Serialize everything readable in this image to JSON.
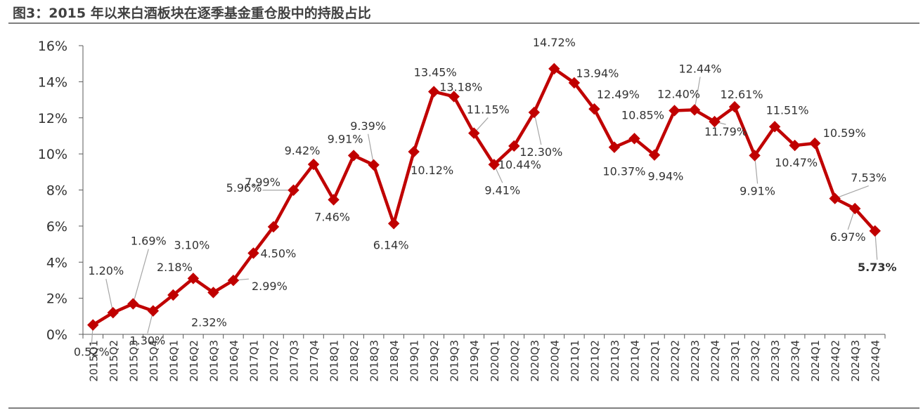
{
  "title": "图3：2015 年以来白酒板块在逐季基金重仓股中的持股占比",
  "chart_data": {
    "type": "line",
    "title": "图3：2015 年以来白酒板块在逐季基金重仓股中的持股占比",
    "xlabel": "",
    "ylabel": "",
    "ylim": [
      0,
      16
    ],
    "yticks": [
      "0%",
      "2%",
      "4%",
      "6%",
      "8%",
      "10%",
      "12%",
      "14%",
      "16%"
    ],
    "grid": false,
    "legend": "none",
    "line_color": "#c00000",
    "categories": [
      "2015Q1",
      "2015Q2",
      "2015Q3",
      "2015Q4",
      "2016Q1",
      "2016Q2",
      "2016Q3",
      "2016Q4",
      "2017Q1",
      "2017Q2",
      "2017Q3",
      "2017Q4",
      "2018Q1",
      "2018Q2",
      "2018Q3",
      "2018Q4",
      "2019Q1",
      "2019Q2",
      "2019Q3",
      "2019Q4",
      "2020Q1",
      "2020Q2",
      "2020Q3",
      "2020Q4",
      "2021Q1",
      "2021Q2",
      "2021Q3",
      "2021Q4",
      "2022Q1",
      "2022Q2",
      "2022Q3",
      "2022Q4",
      "2023Q1",
      "2023Q2",
      "2023Q3",
      "2023Q4",
      "2024Q1",
      "2024Q2",
      "2024Q3",
      "2024Q4"
    ],
    "values": [
      0.52,
      1.2,
      1.69,
      1.3,
      2.18,
      3.1,
      2.32,
      2.99,
      4.5,
      5.96,
      7.99,
      9.42,
      7.46,
      9.91,
      9.39,
      6.14,
      10.12,
      13.45,
      13.18,
      11.15,
      9.41,
      10.44,
      12.3,
      14.72,
      13.94,
      12.49,
      10.37,
      10.85,
      9.94,
      12.4,
      12.44,
      11.79,
      12.61,
      9.91,
      11.51,
      10.47,
      10.59,
      7.53,
      6.97,
      5.73
    ],
    "labels": [
      "0.52%",
      "1.20%",
      "1.69%",
      "1.30%",
      "2.18%",
      "3.10%",
      "2.32%",
      "2.99%",
      "4.50%",
      "5.96%",
      "7.99%",
      "9.42%",
      "7.46%",
      "9.91%",
      "9.39%",
      "6.14%",
      "10.12%",
      "13.45%",
      "13.18%",
      "11.15%",
      "9.41%",
      "10.44%",
      "12.30%",
      "14.72%",
      "13.94%",
      "12.49%",
      "10.37%",
      "10.85%",
      "9.94%",
      "12.40%",
      "12.44%",
      "11.79%",
      "12.61%",
      "9.91%",
      "11.51%",
      "10.47%",
      "10.59%",
      "7.53%",
      "6.97%",
      "5.73%"
    ]
  }
}
